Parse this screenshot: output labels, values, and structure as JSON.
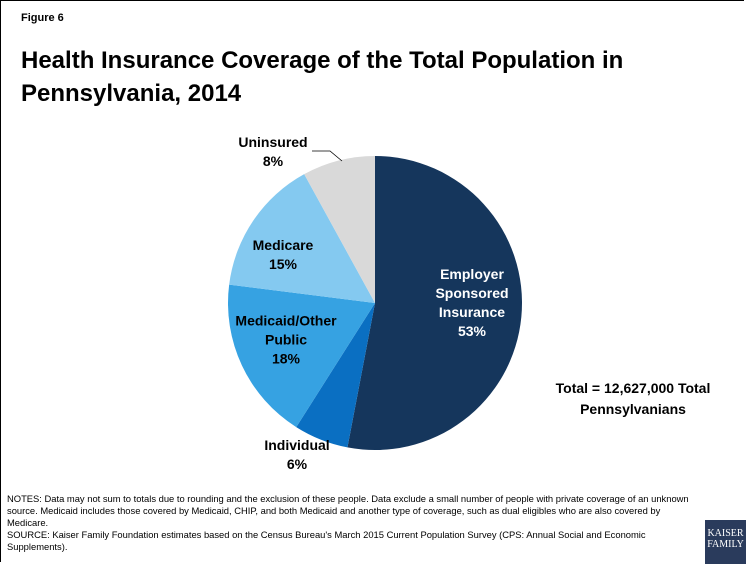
{
  "chart_data": {
    "type": "pie",
    "figure_label": "Figure 6",
    "title": "Health Insurance Coverage of the Total Population in Pennsylvania, 2014",
    "categories": [
      "Employer Sponsored Insurance",
      "Individual",
      "Medicaid/Other Public",
      "Medicare",
      "Uninsured"
    ],
    "values": [
      53,
      6,
      18,
      15,
      8
    ],
    "value_labels": [
      "53%",
      "6%",
      "18%",
      "15%",
      "8%"
    ],
    "colors": [
      "#15365c",
      "#0a6fc2",
      "#36a2e2",
      "#84c9f0",
      "#d9d9d9"
    ],
    "annotation": "Total = 12,627,000 Total Pennsylvanians",
    "notes": "NOTES: Data may not sum to totals due to rounding and the exclusion of these people. Data exclude a small number of people with private coverage of an unknown source. Medicaid includes those covered by Medicaid, CHIP, and both Medicaid and another type of coverage, such as dual eligibles who are also covered by Medicare.",
    "source": "SOURCE: Kaiser Family Foundation estimates based on the Census Bureau's March 2015 Current Population Survey (CPS: Annual Social and Economic Supplements).",
    "logo_text": "KAISER FAMILY"
  }
}
